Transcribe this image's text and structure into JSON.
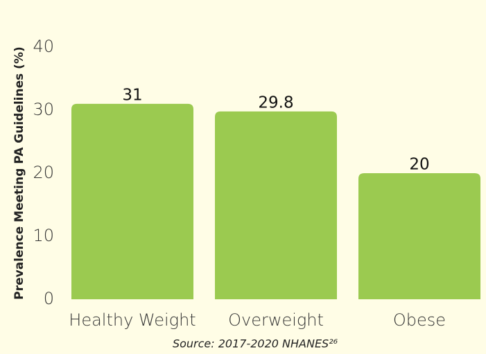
{
  "chart_data": {
    "type": "bar",
    "y_label": "Prevalence Meeting PA Guidelines (%)",
    "source": "Source: 2017-2020 NHANES²⁶",
    "categories": [
      "Healthy Weight",
      "Overweight",
      "Obese"
    ],
    "values": [
      31,
      29.8,
      20
    ],
    "color": "#9bca50",
    "ylim": [
      0,
      40
    ],
    "yticks": [
      0,
      10,
      20,
      30,
      40
    ],
    "grid": false
  }
}
